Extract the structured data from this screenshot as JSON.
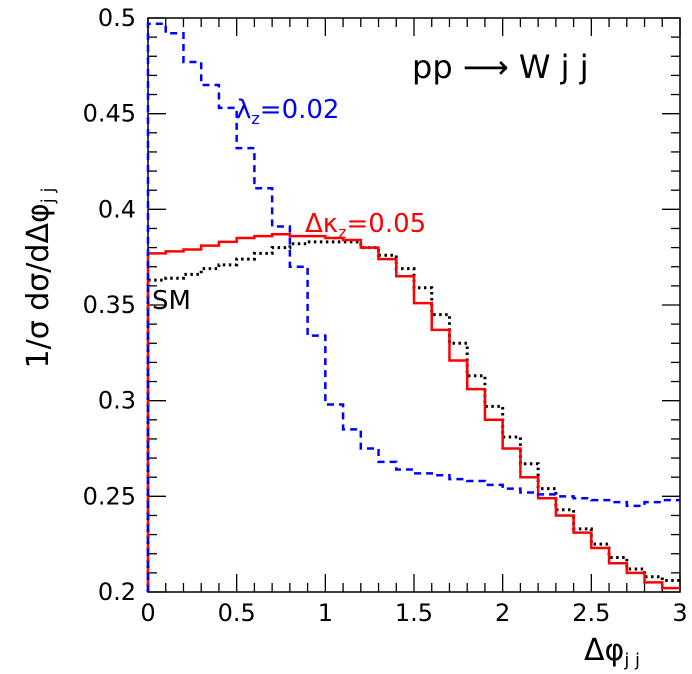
{
  "chart_data": {
    "type": "line",
    "step": true,
    "title": "pp ⟶ W j j",
    "xlabel": "Δφ",
    "xlabel_sub": "j j",
    "ylabel": "1/σ dσ/dΔφ",
    "ylabel_sub": "j j",
    "xlim": [
      0,
      3
    ],
    "ylim": [
      0.2,
      0.5
    ],
    "xticks": [
      "0",
      "0.5",
      "1",
      "1.5",
      "2",
      "2.5",
      "3"
    ],
    "yticks": [
      "0.2",
      "0.25",
      "0.3",
      "0.35",
      "0.4",
      "0.45",
      "0.5"
    ],
    "grid": false,
    "bin_width": 0.1,
    "bin_edges_start": 0,
    "series": [
      {
        "name": "SM",
        "color": "#000000",
        "style": "dotted",
        "values": [
          0.363,
          0.364,
          0.366,
          0.369,
          0.371,
          0.374,
          0.377,
          0.38,
          0.382,
          0.383,
          0.383,
          0.383,
          0.38,
          0.376,
          0.369,
          0.359,
          0.345,
          0.33,
          0.313,
          0.297,
          0.281,
          0.267,
          0.254,
          0.243,
          0.233,
          0.225,
          0.218,
          0.212,
          0.208,
          0.206
        ]
      },
      {
        "name": "Δκ",
        "name_sub": "z",
        "name_value": "=0.05",
        "color": "#ff0000",
        "style": "solid",
        "values": [
          0.377,
          0.378,
          0.379,
          0.381,
          0.383,
          0.385,
          0.386,
          0.387,
          0.386,
          0.386,
          0.385,
          0.384,
          0.38,
          0.374,
          0.365,
          0.351,
          0.337,
          0.321,
          0.306,
          0.29,
          0.275,
          0.26,
          0.249,
          0.24,
          0.231,
          0.223,
          0.215,
          0.21,
          0.205,
          0.202
        ]
      },
      {
        "name": "λ",
        "name_sub": "z",
        "name_value": "=0.02",
        "color": "#0000ff",
        "style": "dashed",
        "values": [
          0.497,
          0.492,
          0.477,
          0.465,
          0.453,
          0.432,
          0.411,
          0.391,
          0.37,
          0.334,
          0.298,
          0.285,
          0.275,
          0.268,
          0.264,
          0.262,
          0.261,
          0.259,
          0.258,
          0.256,
          0.254,
          0.252,
          0.251,
          0.25,
          0.249,
          0.248,
          0.247,
          0.245,
          0.247,
          0.248
        ]
      }
    ]
  }
}
